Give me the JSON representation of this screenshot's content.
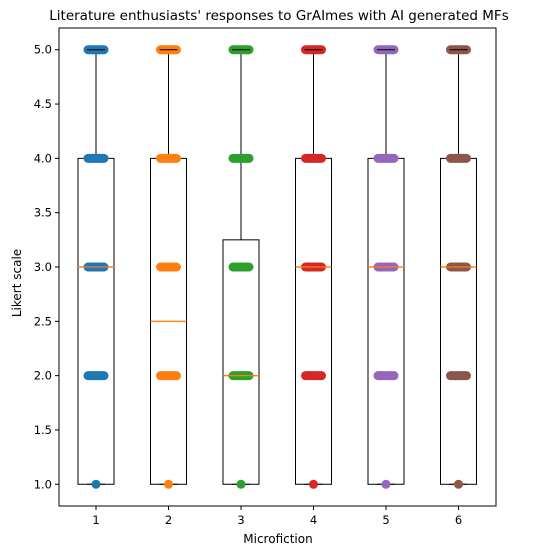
{
  "chart_data": {
    "type": "box",
    "title": "Literature enthusiasts' responses to GrAImes with AI generated MFs",
    "xlabel": "Microfiction",
    "ylabel": "Likert scale",
    "ylim": [
      0.8,
      5.2
    ],
    "yticks": [
      "1.0",
      "1.5",
      "2.0",
      "2.5",
      "3.0",
      "3.5",
      "4.0",
      "4.5",
      "5.0"
    ],
    "categories": [
      "1",
      "2",
      "3",
      "4",
      "5",
      "6"
    ],
    "grid": false,
    "series": [
      {
        "category": "1",
        "color": "#1f77b4",
        "min": 1.0,
        "q1": 1.0,
        "median": 3.0,
        "q3": 4.0,
        "max": 5.0,
        "points": [
          1,
          2,
          3,
          4,
          5
        ]
      },
      {
        "category": "2",
        "color": "#ff7f0e",
        "min": 1.0,
        "q1": 1.0,
        "median": 2.5,
        "q3": 4.0,
        "max": 5.0,
        "points": [
          1,
          2,
          3,
          4,
          5
        ]
      },
      {
        "category": "3",
        "color": "#2ca02c",
        "min": 1.0,
        "q1": 1.0,
        "median": 2.0,
        "q3": 3.25,
        "max": 5.0,
        "points": [
          1,
          2,
          3,
          4,
          5
        ]
      },
      {
        "category": "4",
        "color": "#d62728",
        "min": 1.0,
        "q1": 1.0,
        "median": 3.0,
        "q3": 4.0,
        "max": 5.0,
        "points": [
          1,
          2,
          3,
          4,
          5
        ]
      },
      {
        "category": "5",
        "color": "#9467bd",
        "min": 1.0,
        "q1": 1.0,
        "median": 3.0,
        "q3": 4.0,
        "max": 5.0,
        "points": [
          1,
          2,
          3,
          4,
          5
        ]
      },
      {
        "category": "6",
        "color": "#8c564b",
        "min": 1.0,
        "q1": 1.0,
        "median": 3.0,
        "q3": 4.0,
        "max": 5.0,
        "points": [
          1,
          2,
          3,
          4,
          5
        ]
      }
    ],
    "median_color": "#ff7f0e"
  }
}
